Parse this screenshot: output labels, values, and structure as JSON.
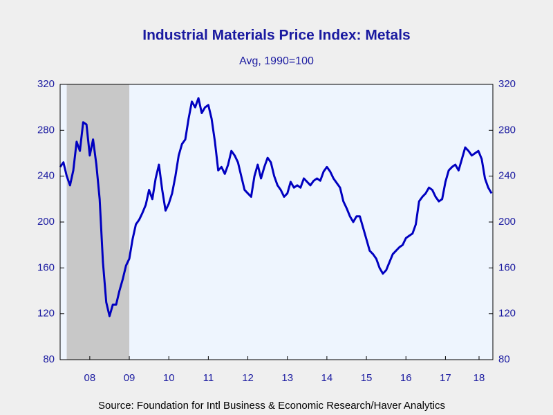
{
  "chart_data": {
    "type": "line",
    "title": "Industrial Materials Price Index: Metals",
    "subtitle": "Avg, 1990=100",
    "source": "Source:  Foundation for Intl Business & Economic Research/Haver Analytics",
    "x": [
      2007.75,
      2007.833,
      2007.917,
      2008,
      2008.083,
      2008.167,
      2008.25,
      2008.333,
      2008.417,
      2008.5,
      2008.583,
      2008.667,
      2008.75,
      2008.833,
      2008.917,
      2009,
      2009.083,
      2009.167,
      2009.25,
      2009.333,
      2009.417,
      2009.5,
      2009.583,
      2009.667,
      2009.75,
      2009.833,
      2009.917,
      2010,
      2010.083,
      2010.167,
      2010.25,
      2010.333,
      2010.417,
      2010.5,
      2010.583,
      2010.667,
      2010.75,
      2010.833,
      2010.917,
      2011,
      2011.083,
      2011.167,
      2011.25,
      2011.333,
      2011.417,
      2011.5,
      2011.583,
      2011.667,
      2011.75,
      2011.833,
      2011.917,
      2012,
      2012.083,
      2012.167,
      2012.25,
      2012.333,
      2012.417,
      2012.5,
      2012.583,
      2012.667,
      2012.75,
      2012.833,
      2012.917,
      2013,
      2013.083,
      2013.167,
      2013.25,
      2013.333,
      2013.417,
      2013.5,
      2013.583,
      2013.667,
      2013.75,
      2013.833,
      2013.917,
      2014,
      2014.083,
      2014.167,
      2014.25,
      2014.333,
      2014.417,
      2014.5,
      2014.583,
      2014.667,
      2014.75,
      2014.833,
      2014.917,
      2015,
      2015.083,
      2015.167,
      2015.25,
      2015.333,
      2015.417,
      2015.5,
      2015.583,
      2015.667,
      2015.75,
      2015.833,
      2015.917,
      2016,
      2016.083,
      2016.167,
      2016.25,
      2016.333,
      2016.417,
      2016.5,
      2016.583,
      2016.667,
      2016.75,
      2016.833,
      2016.917,
      2017,
      2017.083,
      2017.167,
      2017.25,
      2017.333,
      2017.417,
      2017.5,
      2017.583,
      2017.667,
      2017.75,
      2017.833,
      2017.917,
      2018,
      2018.083,
      2018.167,
      2018.25,
      2018.333,
      2018.417,
      2018.5,
      2018.583,
      2018.667
    ],
    "series": [
      {
        "name": "Metals",
        "color": "#0000c0",
        "values": [
          248,
          252,
          240,
          232,
          245,
          270,
          262,
          287,
          285,
          258,
          272,
          250,
          220,
          165,
          130,
          118,
          128,
          128,
          140,
          150,
          162,
          168,
          185,
          198,
          202,
          208,
          215,
          228,
          220,
          238,
          250,
          228,
          210,
          216,
          225,
          240,
          258,
          268,
          272,
          290,
          305,
          300,
          308,
          295,
          300,
          302,
          290,
          270,
          245,
          248,
          242,
          250,
          262,
          258,
          252,
          240,
          228,
          225,
          222,
          240,
          250,
          238,
          248,
          256,
          252,
          240,
          232,
          228,
          222,
          225,
          235,
          230,
          232,
          230,
          238,
          235,
          232,
          236,
          238,
          236,
          244,
          248,
          244,
          238,
          234,
          230,
          218,
          212,
          205,
          200,
          205,
          205,
          195,
          185,
          175,
          172,
          168,
          160,
          155,
          158,
          165,
          172,
          175,
          178,
          180,
          186,
          188,
          190,
          198,
          218,
          222,
          225,
          230,
          228,
          222,
          218,
          220,
          235,
          245,
          248,
          250,
          245,
          255,
          265,
          262,
          258,
          260,
          262,
          255,
          238,
          230,
          225
        ]
      }
    ],
    "xlim": [
      2007.75,
      2018.7
    ],
    "xticks": [
      {
        "value": 2008.5,
        "label": "08"
      },
      {
        "value": 2009.5,
        "label": "09"
      },
      {
        "value": 2010.5,
        "label": "10"
      },
      {
        "value": 2011.5,
        "label": "11"
      },
      {
        "value": 2012.5,
        "label": "12"
      },
      {
        "value": 2013.5,
        "label": "13"
      },
      {
        "value": 2014.5,
        "label": "14"
      },
      {
        "value": 2015.5,
        "label": "15"
      },
      {
        "value": 2016.5,
        "label": "16"
      },
      {
        "value": 2017.5,
        "label": "17"
      },
      {
        "value": 2018.35,
        "label": "18"
      }
    ],
    "ylim": [
      80,
      320
    ],
    "yticks": [
      80,
      120,
      160,
      200,
      240,
      280,
      320
    ],
    "shaded": [
      2007.917,
      2009.5
    ]
  }
}
